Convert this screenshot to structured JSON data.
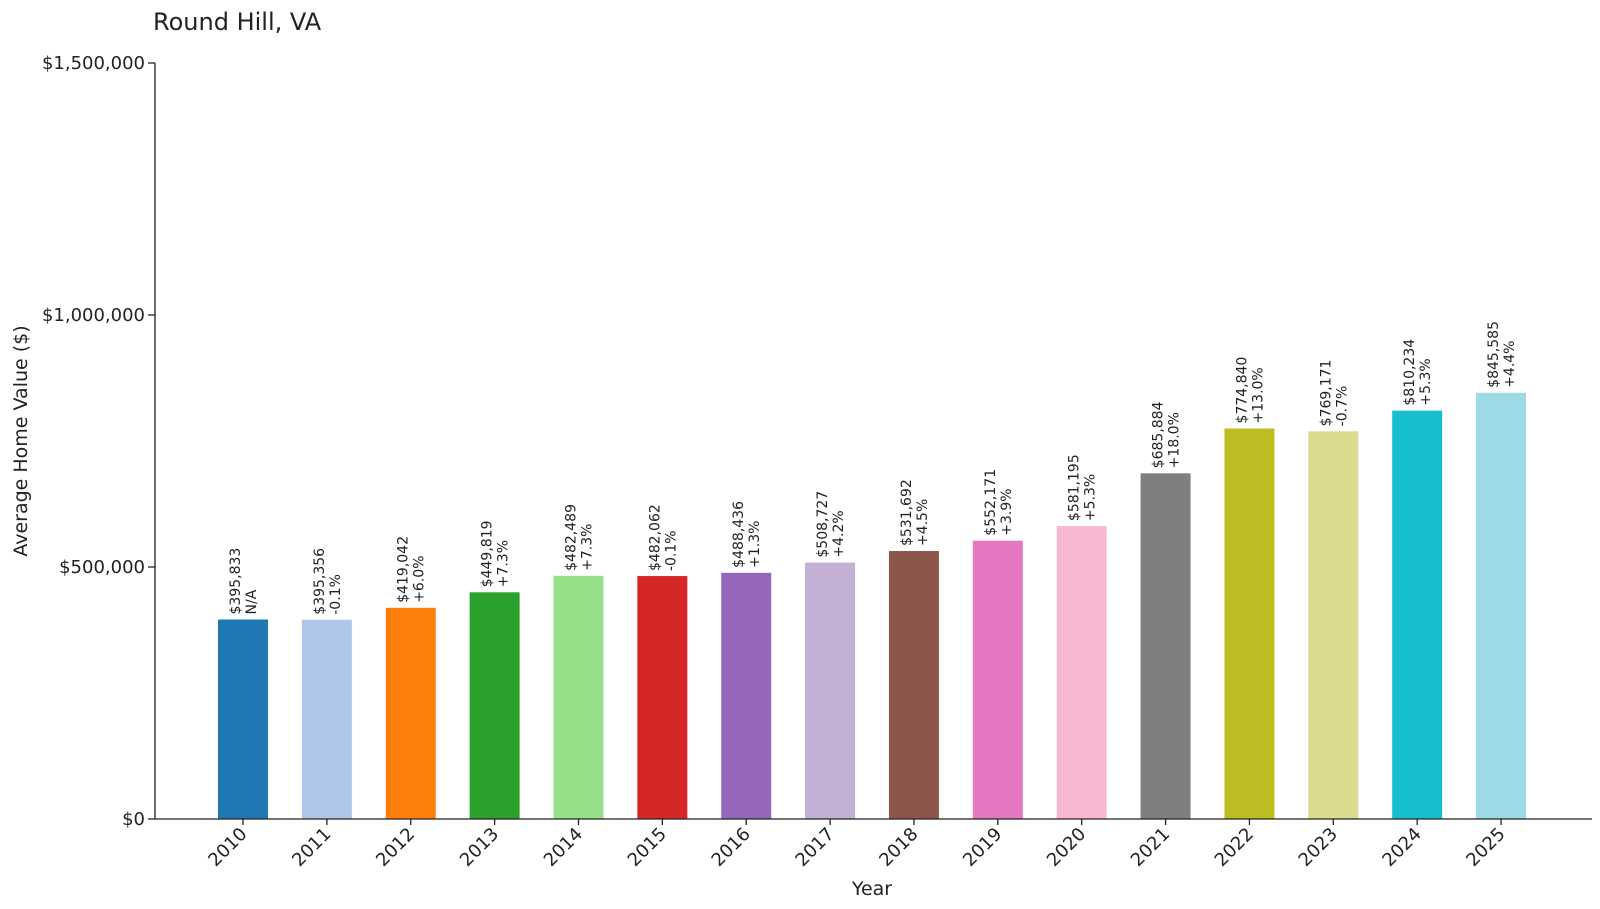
{
  "chart_data": {
    "type": "bar",
    "title": "Round Hill, VA",
    "xlabel": "Year",
    "ylabel": "Average Home Value ($)",
    "ylim": [
      0,
      1500000
    ],
    "yticks": [
      {
        "value": 0,
        "label": "$0"
      },
      {
        "value": 500000,
        "label": "$500,000"
      },
      {
        "value": 1000000,
        "label": "$1,000,000"
      },
      {
        "value": 1500000,
        "label": "$1,500,000"
      }
    ],
    "categories": [
      "2010",
      "2011",
      "2012",
      "2013",
      "2014",
      "2015",
      "2016",
      "2017",
      "2018",
      "2019",
      "2020",
      "2021",
      "2022",
      "2023",
      "2024",
      "2025"
    ],
    "values": [
      395833,
      395356,
      419042,
      449819,
      482489,
      482062,
      488436,
      508727,
      531692,
      552171,
      581195,
      685884,
      774840,
      769171,
      810234,
      845585
    ],
    "value_labels": [
      "$395,833",
      "$395,356",
      "$419,042",
      "$449,819",
      "$482,489",
      "$482,062",
      "$488,436",
      "$508,727",
      "$531,692",
      "$552,171",
      "$581,195",
      "$685,884",
      "$774,840",
      "$769,171",
      "$810,234",
      "$845,585"
    ],
    "change_labels": [
      "N/A",
      "-0.1%",
      "+6.0%",
      "+7.3%",
      "+7.3%",
      "-0.1%",
      "+1.3%",
      "+4.2%",
      "+4.5%",
      "+3.9%",
      "+5.3%",
      "+18.0%",
      "+13.0%",
      "-0.7%",
      "+5.3%",
      "+4.4%"
    ],
    "colors": [
      "#1f77b4",
      "#aec7e8",
      "#ff7f0e",
      "#2ca02c",
      "#98df8a",
      "#d62728",
      "#9467bd",
      "#c5b0d5",
      "#8c564b",
      "#e377c2",
      "#f7b6d2",
      "#7f7f7f",
      "#bcbd22",
      "#dbdb8d",
      "#17becf",
      "#9edae5"
    ],
    "grid": false,
    "legend": "none"
  }
}
